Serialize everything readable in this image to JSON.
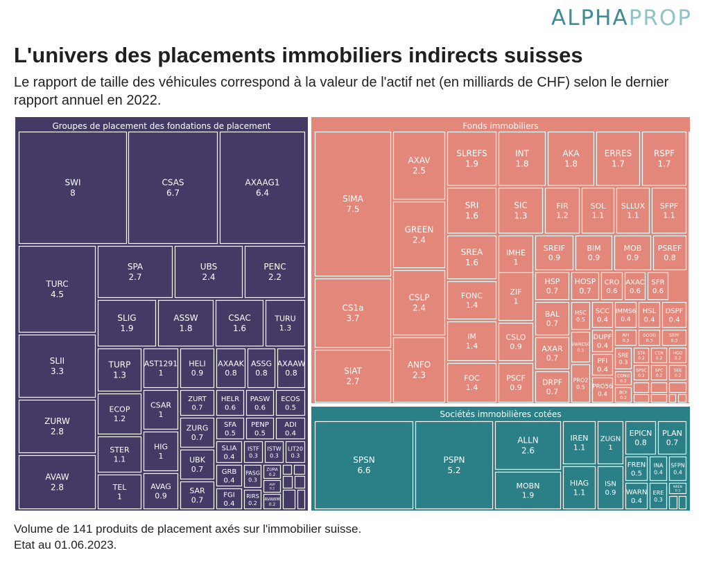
{
  "brand": {
    "part1": "ALPHA",
    "part2": "PROP"
  },
  "title": "L'univers des placements immobiliers indirects suisses",
  "subtitle": "Le rapport de taille des véhicules correspond à la valeur de l'actif net (en milliards de CHF) selon le dernier rapport annuel en 2022.",
  "footer": {
    "line1": "Volume de 141 produits de placement axés sur l'immobilier suisse.",
    "line2": "Etat au 01.06.2023."
  },
  "chart_data": {
    "type": "treemap",
    "title": "L'univers des placements immobiliers indirects suisses",
    "unit": "milliards de CHF",
    "groups": [
      {
        "name": "Groupes de placement des fondations de placement",
        "color": "#453a66",
        "items": [
          {
            "label": "SWI",
            "value": "8"
          },
          {
            "label": "CSAS",
            "value": "6.7"
          },
          {
            "label": "AXAAG1",
            "value": "6.4"
          },
          {
            "label": "TURC",
            "value": "4.5"
          },
          {
            "label": "SLII",
            "value": "3.3"
          },
          {
            "label": "ZURW",
            "value": "2.8"
          },
          {
            "label": "AVAW",
            "value": "2.8"
          },
          {
            "label": "SPA",
            "value": "2.7"
          },
          {
            "label": "UBS",
            "value": "2.4"
          },
          {
            "label": "PENC",
            "value": "2.2"
          },
          {
            "label": "SLIG",
            "value": "1.9"
          },
          {
            "label": "ASSW",
            "value": "1.8"
          },
          {
            "label": "CSAC",
            "value": "1.6"
          },
          {
            "label": "TURU",
            "value": "1.3"
          },
          {
            "label": "TURP",
            "value": "1.3"
          },
          {
            "label": "ECOP",
            "value": "1.2"
          },
          {
            "label": "STER",
            "value": "1.1"
          },
          {
            "label": "TEL",
            "value": "1"
          },
          {
            "label": "AST1291",
            "value": "1"
          },
          {
            "label": "CSAR",
            "value": "1"
          },
          {
            "label": "HIG",
            "value": "1"
          },
          {
            "label": "AVAG",
            "value": "0.9"
          },
          {
            "label": "HELI",
            "value": "0.9"
          },
          {
            "label": "AXAAK",
            "value": "0.8"
          },
          {
            "label": "ASSG",
            "value": "0.8"
          },
          {
            "label": "AXAAW",
            "value": "0.8"
          },
          {
            "label": "ZURT",
            "value": "0.7"
          },
          {
            "label": "ZURG",
            "value": "0.7"
          },
          {
            "label": "UBK",
            "value": "0.7"
          },
          {
            "label": "SAR",
            "value": "0.7"
          },
          {
            "label": "HELR",
            "value": "0.6"
          },
          {
            "label": "PASW",
            "value": "0.6"
          },
          {
            "label": "ECOS",
            "value": "0.5"
          },
          {
            "label": "SFA",
            "value": "0.5"
          },
          {
            "label": "PENP",
            "value": "0.5"
          },
          {
            "label": "ADI",
            "value": "0.4"
          },
          {
            "label": "SLIA",
            "value": "0.4"
          },
          {
            "label": "ISTF",
            "value": "0.3"
          },
          {
            "label": "ISTW",
            "value": "0.3"
          },
          {
            "label": "LIT20",
            "value": "0.3"
          },
          {
            "label": "GRB",
            "value": "0.4"
          },
          {
            "label": "FGI",
            "value": "0.4"
          },
          {
            "label": "PASG",
            "value": "0.3"
          },
          {
            "label": "RIRS",
            "value": "0.2"
          },
          {
            "label": "ZURA",
            "value": "0.2"
          },
          {
            "label": "AVP",
            "value": "0.2"
          },
          {
            "label": "AVAWM",
            "value": "0.2"
          }
        ]
      },
      {
        "name": "Fonds immobiliers",
        "color": "#e2877a",
        "items": [
          {
            "label": "SIMA",
            "value": "7.5"
          },
          {
            "label": "CS1a",
            "value": "3.7"
          },
          {
            "label": "SIAT",
            "value": "2.7"
          },
          {
            "label": "AXAV",
            "value": "2.5"
          },
          {
            "label": "GREEN",
            "value": "2.4"
          },
          {
            "label": "CSLP",
            "value": "2.4"
          },
          {
            "label": "ANFO",
            "value": "2.3"
          },
          {
            "label": "SLREFS",
            "value": "1.9"
          },
          {
            "label": "INT",
            "value": "1.8"
          },
          {
            "label": "AKA",
            "value": "1.8"
          },
          {
            "label": "ERRES",
            "value": "1.7"
          },
          {
            "label": "RSPF",
            "value": "1.7"
          },
          {
            "label": "SRI",
            "value": "1.6"
          },
          {
            "label": "SIC",
            "value": "1.3"
          },
          {
            "label": "FIR",
            "value": "1.2"
          },
          {
            "label": "SOL",
            "value": "1.1"
          },
          {
            "label": "SLLUX",
            "value": "1.1"
          },
          {
            "label": "SFPF",
            "value": "1.1"
          },
          {
            "label": "SREA",
            "value": "1.6"
          },
          {
            "label": "IMHE",
            "value": "1"
          },
          {
            "label": "SREIF",
            "value": "0.9"
          },
          {
            "label": "BIM",
            "value": "0.9"
          },
          {
            "label": "MOB",
            "value": "0.9"
          },
          {
            "label": "PSREF",
            "value": "0.8"
          },
          {
            "label": "FONC",
            "value": "1.4"
          },
          {
            "label": "ZIF",
            "value": "1"
          },
          {
            "label": "IM",
            "value": "1.4"
          },
          {
            "label": "CSLO",
            "value": "0.9"
          },
          {
            "label": "FOC",
            "value": "1.4"
          },
          {
            "label": "PSCF",
            "value": "0.9"
          },
          {
            "label": "HSP",
            "value": "0.7"
          },
          {
            "label": "HOSP",
            "value": "0.7"
          },
          {
            "label": "CRO",
            "value": "0.6"
          },
          {
            "label": "AXAC",
            "value": "0.6"
          },
          {
            "label": "SFR",
            "value": "0.6"
          },
          {
            "label": "BAL",
            "value": "0.7"
          },
          {
            "label": "HSC",
            "value": "0.5"
          },
          {
            "label": "SCC",
            "value": "0.4"
          },
          {
            "label": "IMMS6",
            "value": "0.4"
          },
          {
            "label": "HSL",
            "value": "0.4"
          },
          {
            "label": "DSPF",
            "value": "0.4"
          },
          {
            "label": "RFI",
            "value": "0.3"
          },
          {
            "label": "GOOD",
            "value": "0.3"
          },
          {
            "label": "SRPF",
            "value": "0.3"
          },
          {
            "label": "AXAR",
            "value": "0.7"
          },
          {
            "label": "SWRESC",
            "value": "0.5"
          },
          {
            "label": "DUPF",
            "value": "0.4"
          },
          {
            "label": "PFI",
            "value": "0.4"
          },
          {
            "label": "SRE",
            "value": "0.3"
          },
          {
            "label": "STA",
            "value": "0.2"
          },
          {
            "label": "CEN",
            "value": "0.2"
          },
          {
            "label": "HGO",
            "value": "0.2"
          },
          {
            "label": "SPSC",
            "value": "0.2"
          },
          {
            "label": "SPC",
            "value": "0.2"
          },
          {
            "label": "SEE",
            "value": "0.2"
          },
          {
            "label": "DRPF",
            "value": "0.7"
          },
          {
            "label": "PRO2",
            "value": "0.5"
          },
          {
            "label": "PRO56",
            "value": "0.4"
          },
          {
            "label": "CONU",
            "value": "0.2"
          },
          {
            "label": "BCF",
            "value": "0.2"
          }
        ]
      },
      {
        "name": "Sociétés immobilières cotées",
        "color": "#2b7f86",
        "items": [
          {
            "label": "SPSN",
            "value": "6.6"
          },
          {
            "label": "PSPN",
            "value": "5.2"
          },
          {
            "label": "ALLN",
            "value": "2.6"
          },
          {
            "label": "MOBN",
            "value": "1.9"
          },
          {
            "label": "IREN",
            "value": "1.1"
          },
          {
            "label": "ZUGN",
            "value": "1"
          },
          {
            "label": "HIAG",
            "value": "1.1"
          },
          {
            "label": "ISN",
            "value": "0.9"
          },
          {
            "label": "EPICN",
            "value": "0.8"
          },
          {
            "label": "PLAN",
            "value": "0.7"
          },
          {
            "label": "FREN",
            "value": "0.5"
          },
          {
            "label": "INA",
            "value": "0.4"
          },
          {
            "label": "SFPN",
            "value": "0.4"
          },
          {
            "label": "WARN",
            "value": "0.4"
          },
          {
            "label": "ERE",
            "value": "0.3"
          },
          {
            "label": "NREN",
            "value": "0.3"
          }
        ]
      }
    ]
  }
}
